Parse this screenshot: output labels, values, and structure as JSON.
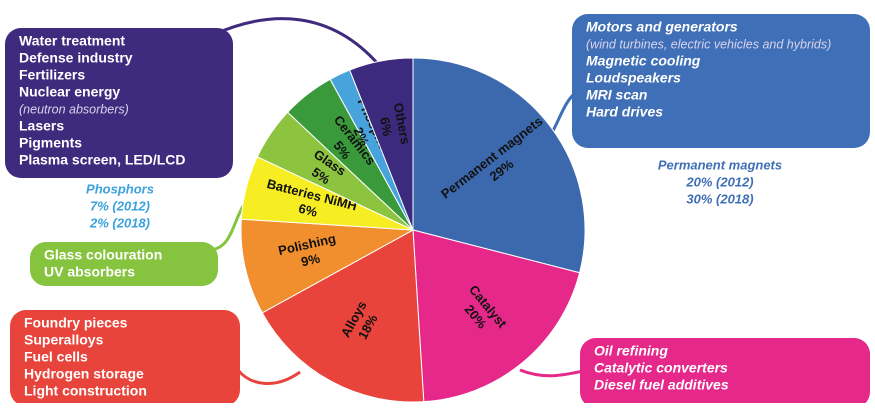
{
  "chart_data": {
    "type": "pie",
    "categories": [
      "Permanent magnets",
      "Catalyst",
      "Alloys",
      "Polishing",
      "Batteries NiMH",
      "Glass",
      "Ceramics",
      "Phosphors",
      "Others"
    ],
    "values": [
      29,
      20,
      18,
      9,
      6,
      5,
      5,
      2,
      6
    ],
    "value_labels": [
      "29%",
      "20%",
      "18%",
      "9%",
      "6%",
      "5%",
      "5%",
      "2%",
      "6%"
    ],
    "colors": [
      "#3c68ae",
      "#e5288a",
      "#e8443b",
      "#f18e2d",
      "#f6ee22",
      "#8cc43f",
      "#3a9a3b",
      "#48a3dd",
      "#3b2a7d"
    ]
  },
  "callouts": [
    {
      "color": "#3f2b7e",
      "items": [
        {
          "text": "Water treatment"
        },
        {
          "text": "Defense industry"
        },
        {
          "text": "Fertilizers"
        },
        {
          "text": "Nuclear energy",
          "note": "(neutron absorbers)"
        },
        {
          "text": "Lasers"
        },
        {
          "text": "Pigments"
        },
        {
          "text": "Plasma screen, LED/LCD"
        }
      ]
    },
    {
      "color": "#3f6fb6",
      "items": [
        {
          "text": "Motors and generators",
          "note": "(wind turbines, electric vehicles and hybrids)"
        },
        {
          "text": "Magnetic cooling"
        },
        {
          "text": "Loudspeakers"
        },
        {
          "text": "MRI scan"
        },
        {
          "text": "Hard drives"
        }
      ]
    },
    {
      "color": "#86c440",
      "items": [
        {
          "text": "Glass colouration"
        },
        {
          "text": "UV absorbers"
        }
      ]
    },
    {
      "color": "#e8443b",
      "items": [
        {
          "text": "Foundry pieces"
        },
        {
          "text": "Superalloys"
        },
        {
          "text": "Fuel cells"
        },
        {
          "text": "Hydrogen storage"
        },
        {
          "text": "Light construction"
        }
      ]
    },
    {
      "color": "#e5288a",
      "items": [
        {
          "text": "Oil refining"
        },
        {
          "text": "Catalytic converters"
        },
        {
          "text": "Diesel fuel additives"
        }
      ]
    }
  ],
  "notes": [
    {
      "color": "#3f6fb6",
      "lines": [
        "Permanent magnets",
        "20% (2012)",
        "30% (2018)"
      ]
    },
    {
      "color": "#3aa2dc",
      "lines": [
        "Phosphors",
        "7% (2012)",
        "2% (2018)"
      ]
    }
  ]
}
